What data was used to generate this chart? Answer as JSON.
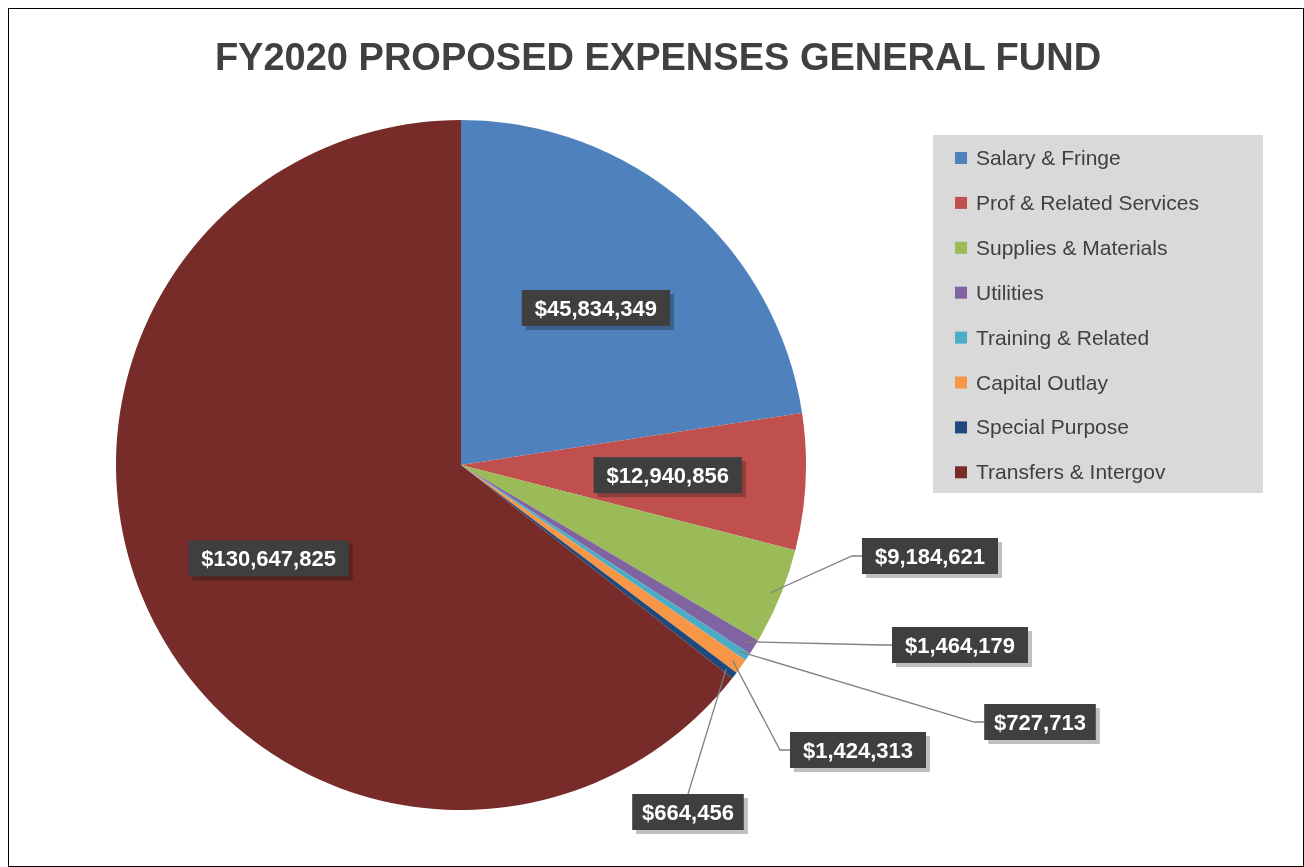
{
  "chart_data": {
    "type": "pie",
    "title": "FY2020 PROPOSED EXPENSES GENERAL FUND",
    "categories": [
      "Salary & Fringe",
      "Prof & Related Services",
      "Supplies & Materials",
      "Utilities",
      "Training & Related",
      "Capital Outlay",
      "Special Purpose",
      "Transfers & Intergov"
    ],
    "values": [
      45834349,
      12940856,
      9184621,
      1464179,
      727713,
      1424313,
      664456,
      130647825
    ],
    "value_labels": [
      "$45,834,349",
      "$12,940,856",
      "$9,184,621",
      "$1,464,179",
      "$727,713",
      "$1,424,313",
      "$664,456",
      "$130,647,825"
    ],
    "colors": [
      "#4f81bd",
      "#c0504d",
      "#9bbb59",
      "#8064a2",
      "#4bacc6",
      "#f79646",
      "#1f497d",
      "#772c2a"
    ],
    "legend": "right"
  }
}
